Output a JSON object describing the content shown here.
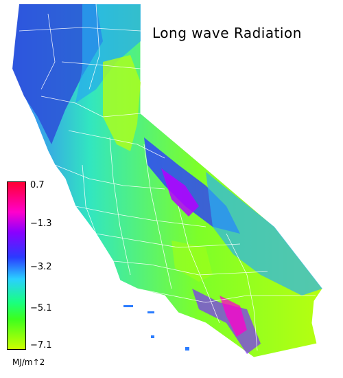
{
  "title": "Long wave Radiation",
  "legend": {
    "ticks": [
      "0.7",
      "−1.3",
      "−3.2",
      "−5.1",
      "−7.1"
    ],
    "unit": "MJ/m↑2",
    "colors": [
      "#ff0033",
      "#ff00cc",
      "#8a00ff",
      "#2a3bff",
      "#2ad0ff",
      "#19ff80",
      "#3cff1e",
      "#ccff00"
    ]
  }
}
